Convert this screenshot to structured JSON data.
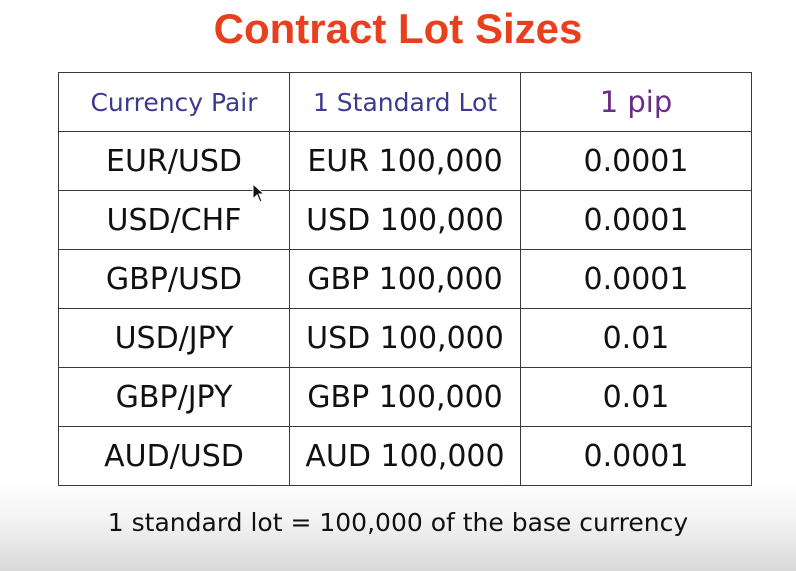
{
  "slide": {
    "title": "Contract Lot Sizes",
    "table": {
      "headers": [
        "Currency Pair",
        "1 Standard Lot",
        "1 pip"
      ],
      "rows": [
        [
          "EUR/USD",
          "EUR 100,000",
          "0.0001"
        ],
        [
          "USD/CHF",
          "USD 100,000",
          "0.0001"
        ],
        [
          "GBP/USD",
          "GBP 100,000",
          "0.0001"
        ],
        [
          "USD/JPY",
          "USD 100,000",
          "0.01"
        ],
        [
          "GBP/JPY",
          "GBP 100,000",
          "0.01"
        ],
        [
          "AUD/USD",
          "AUD 100,000",
          "0.0001"
        ]
      ]
    },
    "footnote": "1 standard lot = 100,000 of the base currency"
  },
  "colors": {
    "title": "#e8401e",
    "header_text": "#3d3a8f",
    "pip_header_text": "#6b2d86",
    "cell_text": "#111111",
    "border": "#3a3a3a"
  },
  "icons": {
    "cursor": "mouse-pointer-icon"
  }
}
